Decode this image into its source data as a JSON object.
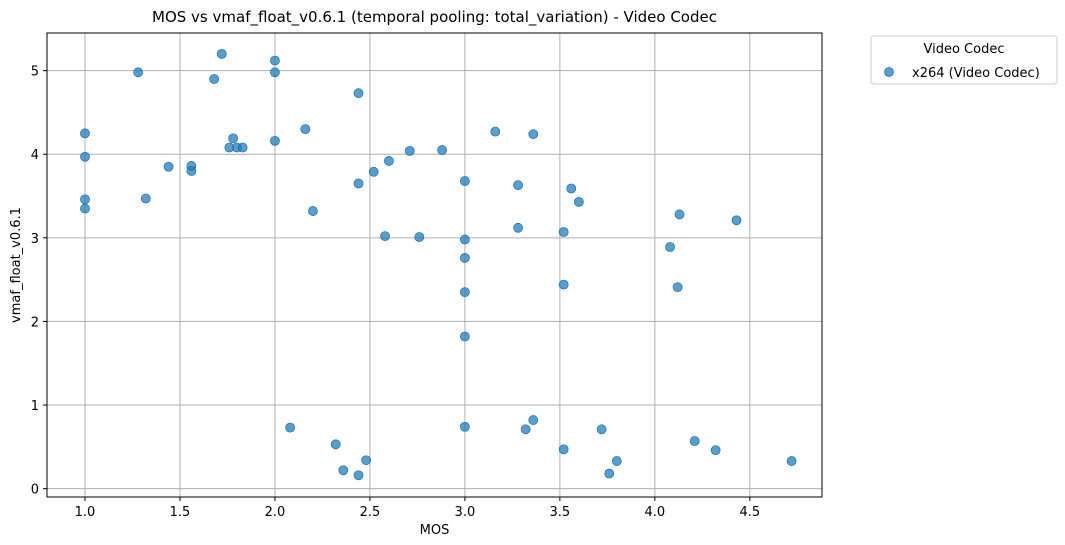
{
  "chart_data": {
    "type": "scatter",
    "title": "MOS vs vmaf_float_v0.6.1 (temporal pooling: total_variation) - Video Codec",
    "xlabel": "MOS",
    "ylabel": "vmaf_float_v0.6.1",
    "xlim": [
      0.8,
      4.88
    ],
    "ylim": [
      -0.1,
      5.45
    ],
    "xticks": [
      1.0,
      1.5,
      2.0,
      2.5,
      3.0,
      3.5,
      4.0,
      4.5
    ],
    "xtick_labels": [
      "1.0",
      "1.5",
      "2.0",
      "2.5",
      "3.0",
      "3.5",
      "4.0",
      "4.5"
    ],
    "yticks": [
      0,
      1,
      2,
      3,
      4,
      5
    ],
    "ytick_labels": [
      "0",
      "1",
      "2",
      "3",
      "4",
      "5"
    ],
    "grid": true,
    "legend": {
      "title": "Video Codec",
      "placement": "outside-top-right"
    },
    "point_color": "#1f77b4",
    "series": [
      {
        "name": "x264 (Video Codec)",
        "points": [
          [
            1.0,
            4.25
          ],
          [
            1.0,
            3.97
          ],
          [
            1.0,
            3.46
          ],
          [
            1.0,
            3.35
          ],
          [
            1.28,
            4.98
          ],
          [
            1.32,
            3.47
          ],
          [
            1.44,
            3.85
          ],
          [
            1.56,
            3.86
          ],
          [
            1.56,
            3.8
          ],
          [
            1.68,
            4.9
          ],
          [
            1.72,
            5.2
          ],
          [
            1.76,
            4.08
          ],
          [
            1.78,
            4.19
          ],
          [
            1.8,
            4.08
          ],
          [
            1.83,
            4.08
          ],
          [
            2.0,
            5.12
          ],
          [
            2.0,
            4.98
          ],
          [
            2.0,
            4.16
          ],
          [
            2.08,
            0.73
          ],
          [
            2.16,
            4.3
          ],
          [
            2.2,
            3.32
          ],
          [
            2.32,
            0.53
          ],
          [
            2.36,
            0.22
          ],
          [
            2.44,
            4.73
          ],
          [
            2.44,
            3.65
          ],
          [
            2.44,
            0.16
          ],
          [
            2.48,
            0.34
          ],
          [
            2.52,
            3.79
          ],
          [
            2.58,
            3.02
          ],
          [
            2.6,
            3.92
          ],
          [
            2.71,
            4.04
          ],
          [
            2.76,
            3.01
          ],
          [
            2.88,
            4.05
          ],
          [
            3.0,
            3.68
          ],
          [
            3.0,
            2.98
          ],
          [
            3.0,
            2.76
          ],
          [
            3.0,
            2.35
          ],
          [
            3.0,
            1.82
          ],
          [
            3.0,
            0.74
          ],
          [
            3.16,
            4.27
          ],
          [
            3.28,
            3.63
          ],
          [
            3.28,
            3.12
          ],
          [
            3.32,
            0.71
          ],
          [
            3.36,
            4.24
          ],
          [
            3.36,
            0.82
          ],
          [
            3.52,
            3.07
          ],
          [
            3.52,
            2.44
          ],
          [
            3.52,
            0.47
          ],
          [
            3.56,
            3.59
          ],
          [
            3.6,
            3.43
          ],
          [
            3.72,
            0.71
          ],
          [
            3.76,
            0.18
          ],
          [
            3.8,
            0.33
          ],
          [
            4.08,
            2.89
          ],
          [
            4.12,
            2.41
          ],
          [
            4.13,
            3.28
          ],
          [
            4.21,
            0.57
          ],
          [
            4.32,
            0.46
          ],
          [
            4.43,
            3.21
          ],
          [
            4.72,
            0.33
          ]
        ]
      }
    ]
  }
}
